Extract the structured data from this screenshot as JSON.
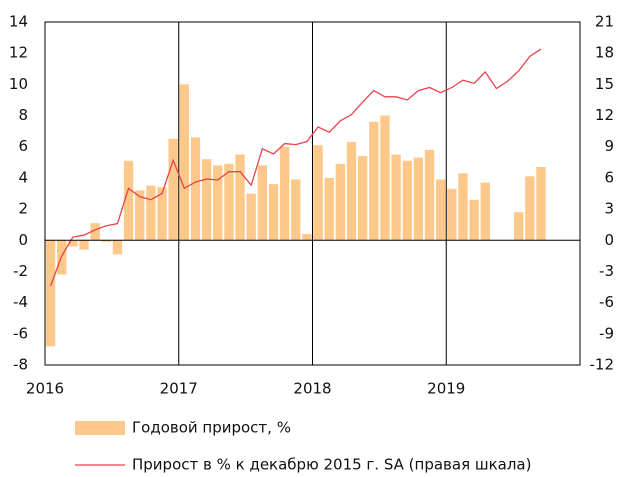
{
  "chart_data": {
    "type": "bar_line",
    "categories": [
      "2016",
      null,
      null,
      null,
      null,
      null,
      null,
      null,
      null,
      null,
      null,
      null,
      "2017",
      null,
      null,
      null,
      null,
      null,
      null,
      null,
      null,
      null,
      null,
      null,
      "2018",
      null,
      null,
      null,
      null,
      null,
      null,
      null,
      null,
      null,
      null,
      null,
      "2019",
      null,
      null,
      null,
      null,
      null,
      null,
      null,
      null,
      null,
      null,
      null
    ],
    "series": [
      {
        "name": "Годовой прирост, %",
        "type": "bar",
        "color": "#fdc98a",
        "axis": "y",
        "values": [
          -6.8,
          -2.2,
          -0.4,
          -0.6,
          1.1,
          -0.1,
          -0.9,
          5.1,
          3.2,
          3.5,
          3.4,
          6.5,
          10.0,
          6.6,
          5.2,
          4.8,
          4.9,
          5.5,
          3.0,
          4.8,
          3.6,
          6.0,
          3.9,
          0.4,
          6.1,
          4.0,
          4.9,
          6.3,
          5.4,
          7.6,
          8.0,
          5.5,
          5.1,
          5.3,
          5.8,
          3.9,
          3.3,
          4.3,
          2.6,
          3.7,
          null,
          null,
          1.8,
          4.1,
          4.7,
          null,
          null,
          null
        ]
      },
      {
        "name": "Прирост в % к декабрю 2015 г. SA (правая шкала)",
        "type": "line",
        "color": "#e8424a",
        "axis": "y2",
        "values": [
          -4.4,
          -1.5,
          0.3,
          0.5,
          1.0,
          1.4,
          1.6,
          5.0,
          4.2,
          3.9,
          4.5,
          7.7,
          5.0,
          5.6,
          5.9,
          5.8,
          6.6,
          6.6,
          5.3,
          8.8,
          8.3,
          9.3,
          9.2,
          9.5,
          10.9,
          10.4,
          11.5,
          12.1,
          13.3,
          14.4,
          13.8,
          13.8,
          13.5,
          14.4,
          14.7,
          14.2,
          14.7,
          15.4,
          15.1,
          16.2,
          14.6,
          15.3,
          16.3,
          17.7,
          18.4,
          null,
          null,
          null
        ]
      }
    ],
    "ylim": [
      -8,
      14
    ],
    "yticks": [
      -8,
      -6,
      -4,
      -2,
      0,
      2,
      4,
      6,
      8,
      10,
      12,
      14
    ],
    "y2lim": [
      -12,
      21
    ],
    "y2ticks": [
      -12,
      -9,
      -6,
      -3,
      0,
      3,
      6,
      9,
      12,
      15,
      18,
      21
    ]
  }
}
